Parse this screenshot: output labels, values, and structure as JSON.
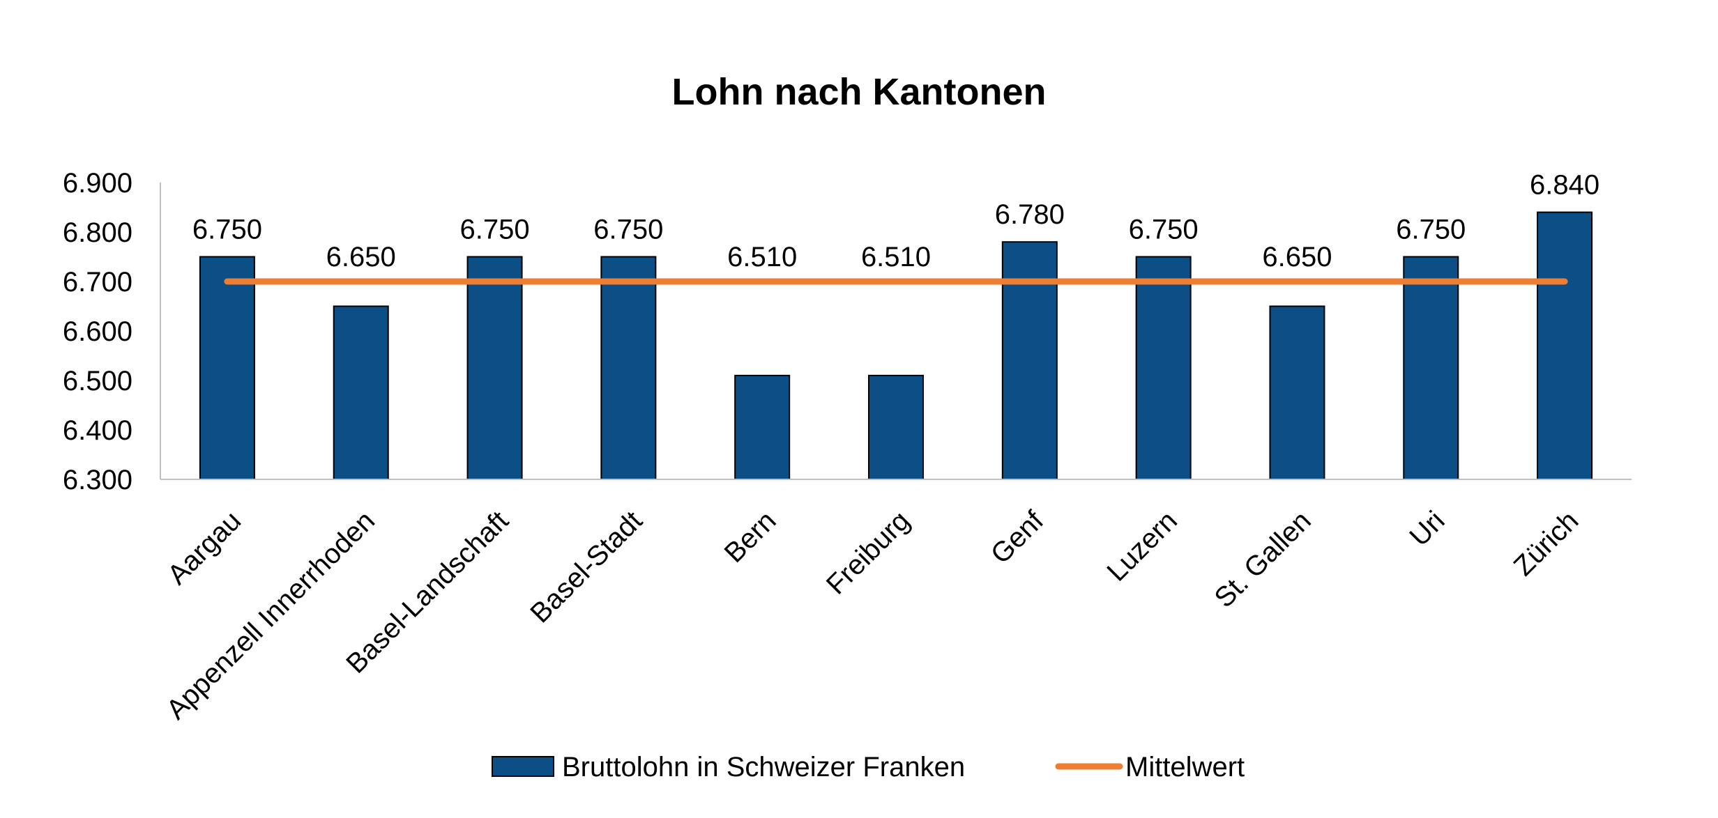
{
  "chart_data": {
    "type": "bar",
    "title": "Lohn nach Kantonen",
    "categories": [
      "Aargau",
      "Appenzell Innerrhoden",
      "Basel-Landschaft",
      "Basel-Stadt",
      "Bern",
      "Freiburg",
      "Genf",
      "Luzern",
      "St. Gallen",
      "Uri",
      "Zürich"
    ],
    "series": [
      {
        "name": "Bruttolohn in Schweizer Franken",
        "type": "bar",
        "color": "#0b4f86",
        "values": [
          6750,
          6650,
          6750,
          6750,
          6510,
          6510,
          6780,
          6750,
          6650,
          6750,
          6840
        ],
        "labels": [
          "6.750",
          "6.650",
          "6.750",
          "6.750",
          "6.510",
          "6.510",
          "6.780",
          "6.750",
          "6.650",
          "6.750",
          "6.840"
        ]
      },
      {
        "name": "Mittelwert",
        "type": "line",
        "color": "#ed7d31",
        "values": [
          6700,
          6700,
          6700,
          6700,
          6700,
          6700,
          6700,
          6700,
          6700,
          6700,
          6700
        ]
      }
    ],
    "ylim": [
      6300,
      6900
    ],
    "yticks": [
      6300,
      6400,
      6500,
      6600,
      6700,
      6800,
      6900
    ],
    "ytick_labels": [
      "6.300",
      "6.400",
      "6.500",
      "6.600",
      "6.700",
      "6.800",
      "6.900"
    ],
    "xlabel": "",
    "ylabel": "",
    "grid": false,
    "legend_position": "bottom"
  }
}
